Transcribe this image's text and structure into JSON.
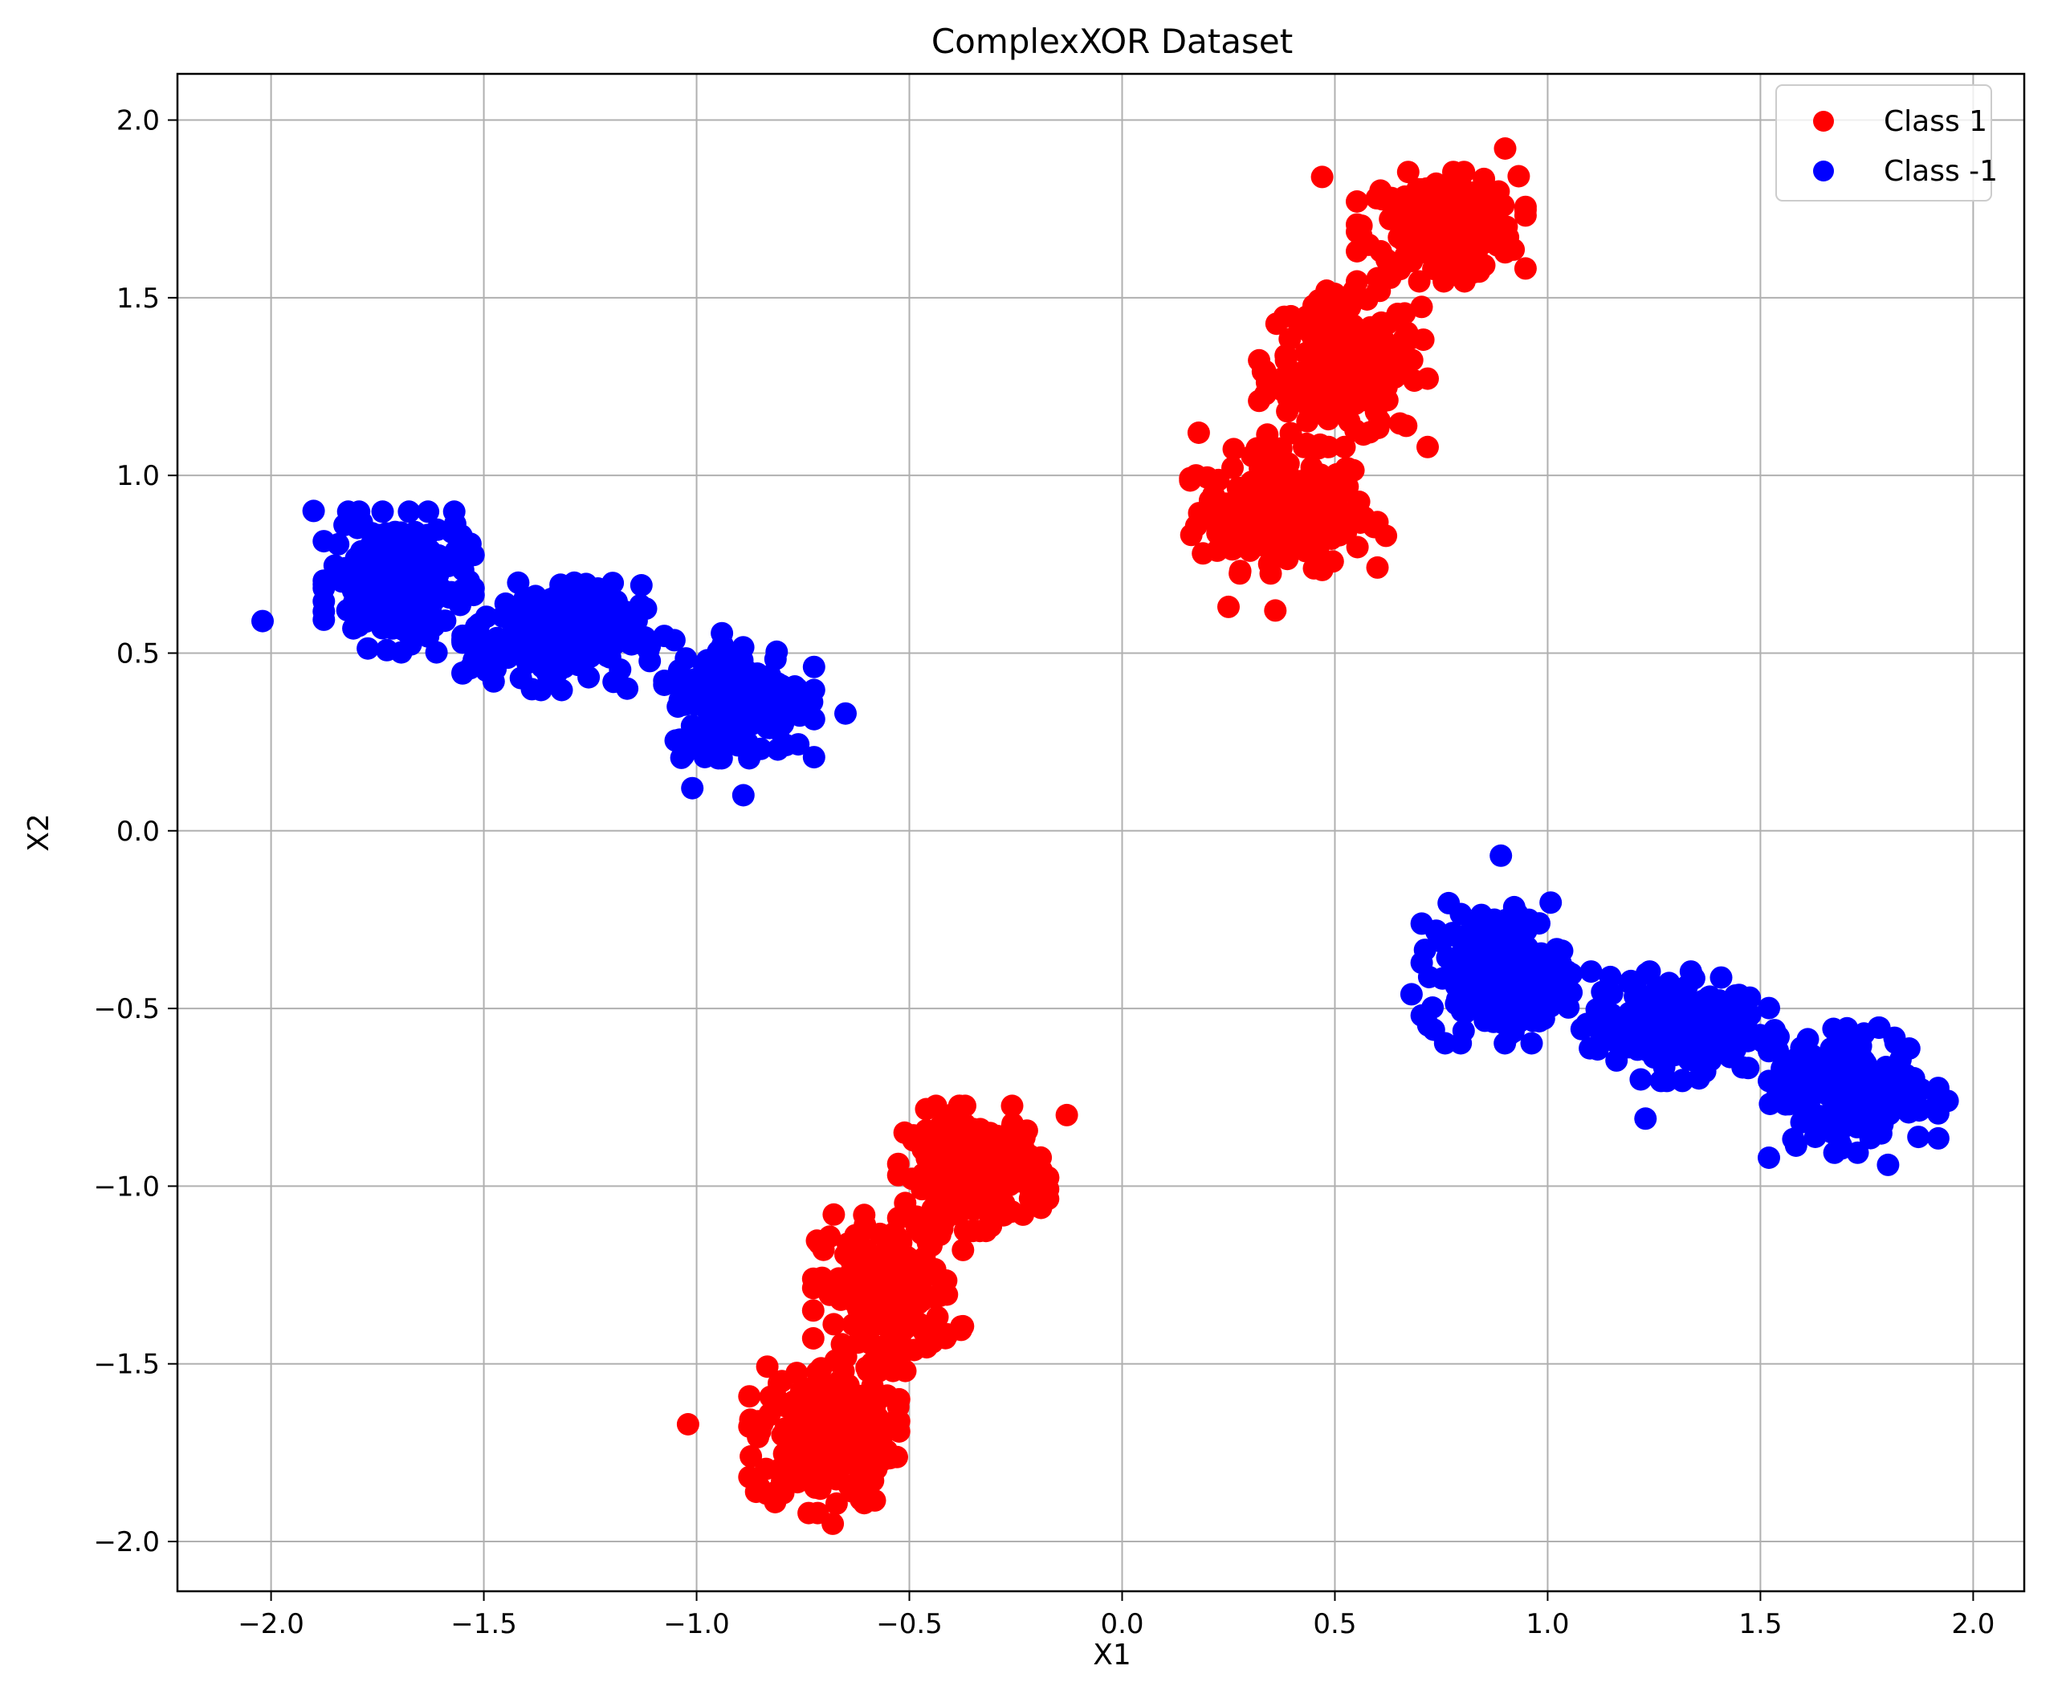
{
  "chart_data": {
    "type": "scatter",
    "title": "ComplexXOR Dataset",
    "xlabel": "X1",
    "ylabel": "X2",
    "xlim": [
      -2.22,
      2.12
    ],
    "ylim": [
      -2.14,
      2.13
    ],
    "xticks": [
      -2.0,
      -1.5,
      -1.0,
      -0.5,
      0.0,
      0.5,
      1.0,
      1.5,
      2.0
    ],
    "yticks": [
      -2.0,
      -1.5,
      -1.0,
      -0.5,
      0.0,
      0.5,
      1.0,
      1.5,
      2.0
    ],
    "xtick_labels": [
      "−2.0",
      "−1.5",
      "−1.0",
      "−0.5",
      "0.0",
      "0.5",
      "1.0",
      "1.5",
      "2.0"
    ],
    "ytick_labels": [
      "−2.0",
      "−1.5",
      "−1.0",
      "−0.5",
      "0.0",
      "0.5",
      "1.0",
      "1.5",
      "2.0"
    ],
    "grid": true,
    "legend_position": "top-right",
    "series": [
      {
        "name": "Class 1",
        "color": "#ff0000",
        "clusters": [
          {
            "center": [
              0.38,
              0.9
            ],
            "spread": [
              0.1,
              0.08
            ],
            "n": 210
          },
          {
            "center": [
              0.52,
              1.3
            ],
            "spread": [
              0.09,
              0.1
            ],
            "n": 210
          },
          {
            "center": [
              0.75,
              1.7
            ],
            "spread": [
              0.09,
              0.07
            ],
            "n": 210
          },
          {
            "center": [
              -0.7,
              -1.7
            ],
            "spread": [
              0.08,
              0.1
            ],
            "n": 210
          },
          {
            "center": [
              -0.55,
              -1.3
            ],
            "spread": [
              0.08,
              0.1
            ],
            "n": 210
          },
          {
            "center": [
              -0.35,
              -0.95
            ],
            "spread": [
              0.08,
              0.08
            ],
            "n": 210
          }
        ],
        "extra_points": [
          [
            0.25,
            0.63
          ],
          [
            0.36,
            0.62
          ],
          [
            0.47,
            1.84
          ],
          [
            0.9,
            1.92
          ],
          [
            -0.68,
            -1.95
          ],
          [
            -0.86,
            -1.86
          ],
          [
            -1.02,
            -1.67
          ],
          [
            -0.13,
            -0.8
          ],
          [
            0.62,
            0.83
          ],
          [
            0.18,
            1.12
          ]
        ]
      },
      {
        "name": "Class -1",
        "color": "#0000ff",
        "clusters": [
          {
            "center": [
              -1.7,
              0.7
            ],
            "spread": [
              0.08,
              0.09
            ],
            "n": 210
          },
          {
            "center": [
              -1.33,
              0.55
            ],
            "spread": [
              0.1,
              0.07
            ],
            "n": 210
          },
          {
            "center": [
              -0.9,
              0.38
            ],
            "spread": [
              0.08,
              0.08
            ],
            "n": 210
          },
          {
            "center": [
              0.88,
              -0.4
            ],
            "spread": [
              0.08,
              0.09
            ],
            "n": 210
          },
          {
            "center": [
              1.3,
              -0.55
            ],
            "spread": [
              0.1,
              0.07
            ],
            "n": 210
          },
          {
            "center": [
              1.72,
              -0.73
            ],
            "spread": [
              0.09,
              0.08
            ],
            "n": 210
          }
        ],
        "extra_points": [
          [
            -2.02,
            0.59
          ],
          [
            -1.9,
            0.9
          ],
          [
            -0.65,
            0.33
          ],
          [
            -0.89,
            0.1
          ],
          [
            -1.01,
            0.12
          ],
          [
            0.68,
            -0.46
          ],
          [
            0.89,
            -0.07
          ],
          [
            1.23,
            -0.81
          ],
          [
            1.94,
            -0.76
          ],
          [
            1.8,
            -0.94
          ],
          [
            1.52,
            -0.92
          ]
        ]
      }
    ]
  }
}
